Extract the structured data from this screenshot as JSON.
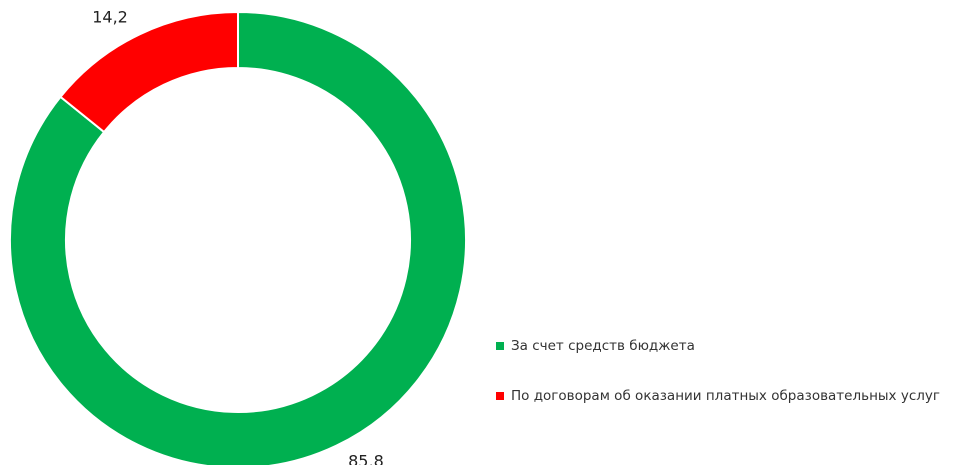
{
  "chart_data": {
    "type": "donut",
    "categories": [
      "За счет средств бюджета",
      "По договорам об оказании платных образовательных услуг"
    ],
    "values": [
      85.8,
      14.2
    ],
    "value_labels": [
      "85,8",
      "14,2"
    ],
    "colors": [
      "#00b050",
      "#ff0000"
    ],
    "legend": "right"
  }
}
